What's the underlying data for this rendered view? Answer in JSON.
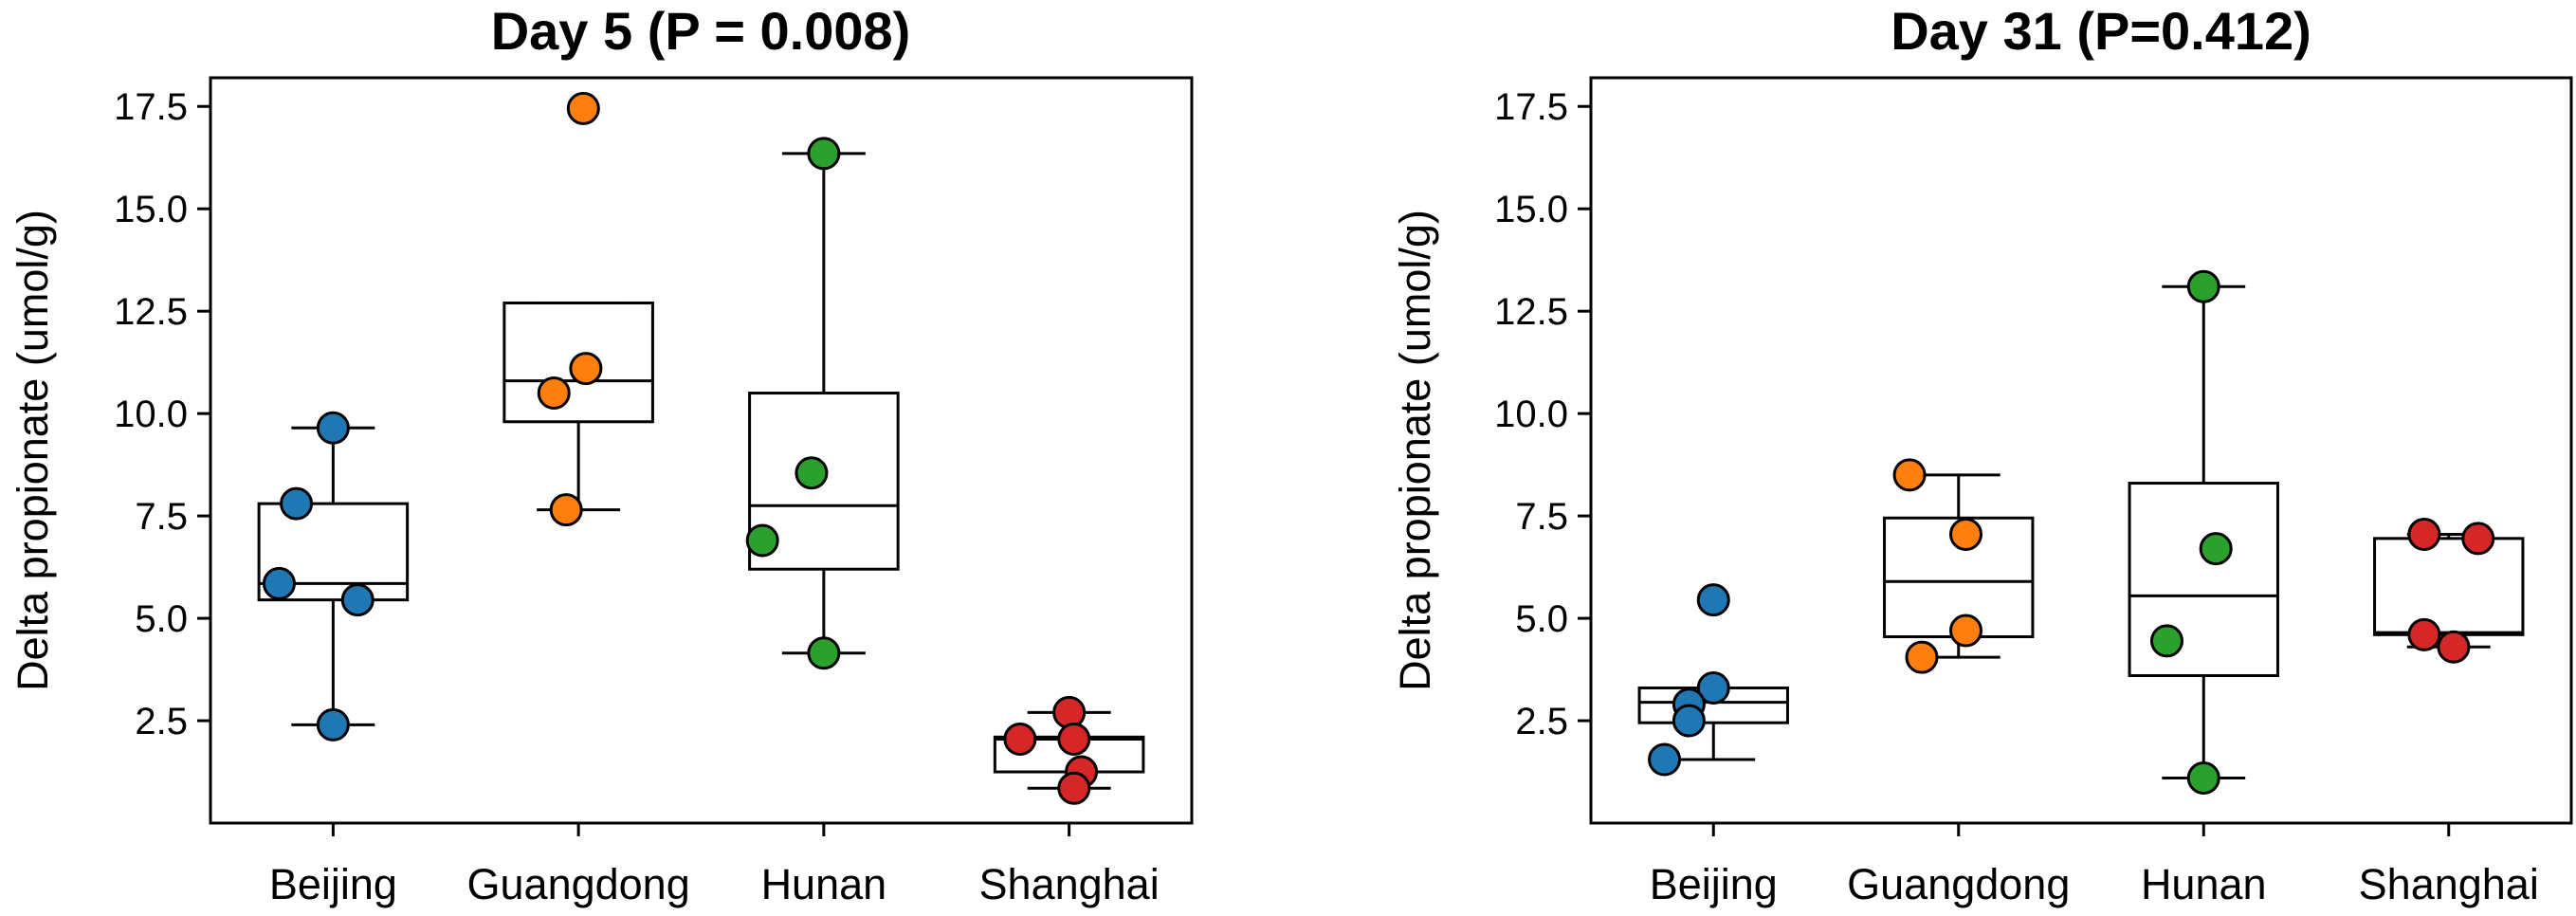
{
  "colors": {
    "Beijing": "#1f77b4",
    "Guangdong": "#ff7f0e",
    "Hunan": "#2ca02c",
    "Shanghai": "#d62728"
  },
  "chart_data": [
    {
      "type": "box",
      "title": "Day 5 (P = 0.008)",
      "ylabel": "Delta propionate  (umol/g)",
      "xlabel": "",
      "ylim": [
        0,
        18.2
      ],
      "yticks": [
        "2.5",
        "5.0",
        "7.5",
        "10.0",
        "12.5",
        "15.0",
        "17.5"
      ],
      "categories": [
        "Beijing",
        "Guangdong",
        "Hunan",
        "Shanghai"
      ],
      "groups": [
        {
          "name": "Beijing",
          "q1": 5.45,
          "median": 5.85,
          "q3": 7.8,
          "whisker_low": 2.4,
          "whisker_high": 9.65,
          "points": [
            9.65,
            7.8,
            5.85,
            5.45,
            2.4
          ],
          "jitter": [
            0.0,
            -0.15,
            -0.22,
            0.1,
            0.0
          ]
        },
        {
          "name": "Guangdong",
          "q1": 9.8,
          "median": 10.8,
          "q3": 12.7,
          "whisker_low": 7.65,
          "whisker_high": 12.7,
          "points": [
            17.45,
            11.1,
            10.5,
            7.65
          ],
          "jitter": [
            0.02,
            0.03,
            -0.1,
            -0.05
          ]
        },
        {
          "name": "Hunan",
          "q1": 6.2,
          "median": 7.75,
          "q3": 10.5,
          "whisker_low": 4.15,
          "whisker_high": 16.35,
          "points": [
            16.35,
            8.55,
            6.9,
            4.15
          ],
          "jitter": [
            0.0,
            -0.05,
            -0.25,
            0.0
          ]
        },
        {
          "name": "Shanghai",
          "q1": 1.25,
          "median": 2.05,
          "q3": 2.1,
          "whisker_low": 0.85,
          "whisker_high": 2.7,
          "points": [
            2.7,
            2.05,
            2.05,
            1.25,
            0.85
          ],
          "jitter": [
            0.0,
            -0.2,
            0.02,
            0.05,
            0.02
          ]
        }
      ]
    },
    {
      "type": "box",
      "title": "Day 31 (P=0.412)",
      "ylabel": "Delta propionate  (umol/g)",
      "xlabel": "",
      "ylim": [
        0,
        18.2
      ],
      "yticks": [
        "2.5",
        "5.0",
        "7.5",
        "10.0",
        "12.5",
        "15.0",
        "17.5"
      ],
      "categories": [
        "Beijing",
        "Guangdong",
        "Hunan",
        "Shanghai"
      ],
      "groups": [
        {
          "name": "Beijing",
          "q1": 2.45,
          "median": 2.95,
          "q3": 3.3,
          "whisker_low": 1.55,
          "whisker_high": 3.3,
          "points": [
            5.45,
            3.3,
            2.9,
            2.5,
            1.55
          ],
          "jitter": [
            0.0,
            0.0,
            -0.1,
            -0.1,
            -0.2
          ]
        },
        {
          "name": "Guangdong",
          "q1": 4.55,
          "median": 5.9,
          "q3": 7.45,
          "whisker_low": 4.05,
          "whisker_high": 8.5,
          "points": [
            8.5,
            7.05,
            4.7,
            4.05
          ],
          "jitter": [
            -0.2,
            0.03,
            0.03,
            -0.15
          ]
        },
        {
          "name": "Hunan",
          "q1": 3.6,
          "median": 5.55,
          "q3": 8.3,
          "whisker_low": 1.1,
          "whisker_high": 13.1,
          "points": [
            13.1,
            6.7,
            4.45,
            1.1
          ],
          "jitter": [
            0.0,
            0.05,
            -0.15,
            0.0
          ]
        },
        {
          "name": "Shanghai",
          "q1": 4.6,
          "median": 4.65,
          "q3": 6.95,
          "whisker_low": 4.3,
          "whisker_high": 7.05,
          "points": [
            7.05,
            6.95,
            4.6,
            4.3
          ],
          "jitter": [
            -0.1,
            0.12,
            -0.1,
            0.02
          ]
        }
      ]
    }
  ]
}
